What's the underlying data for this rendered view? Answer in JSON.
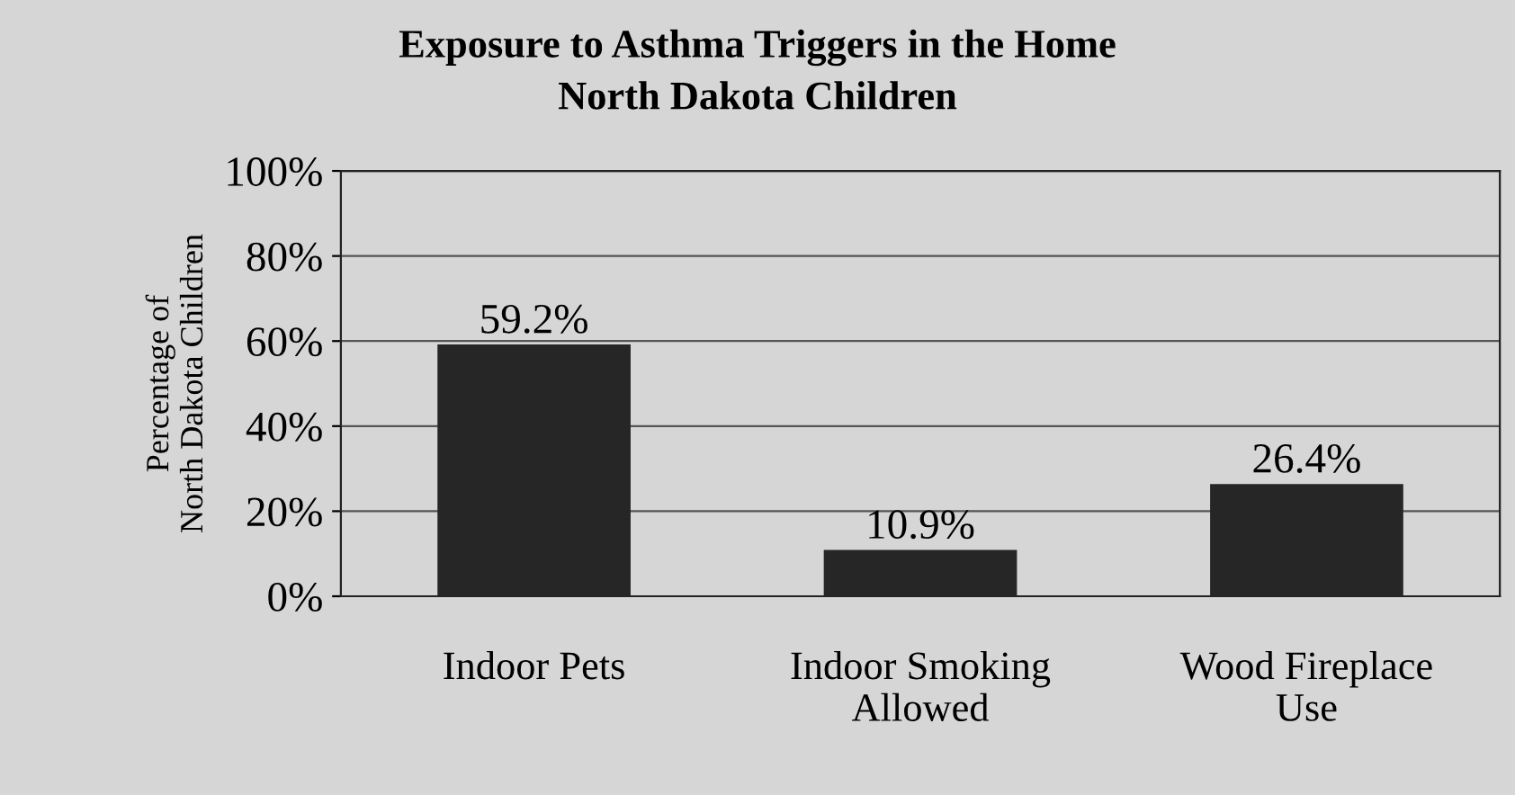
{
  "chart_data": {
    "type": "bar",
    "title": "Exposure to Asthma Triggers in the Home",
    "subtitle": "North Dakota Children",
    "ylabel": "Percentage of\nNorth Dakota Children",
    "categories": [
      "Indoor Pets",
      "Indoor Smoking\nAllowed",
      "Wood Fireplace\nUse"
    ],
    "values": [
      59.2,
      10.9,
      26.4
    ],
    "value_labels": [
      "59.2%",
      "10.9%",
      "26.4%"
    ],
    "color": "#262626",
    "ylim": [
      0,
      100
    ],
    "yticks": [
      {
        "value": 0,
        "label": "0%"
      },
      {
        "value": 20,
        "label": "20%"
      },
      {
        "value": 40,
        "label": "40%"
      },
      {
        "value": 60,
        "label": "60%"
      },
      {
        "value": 80,
        "label": "80%"
      },
      {
        "value": 100,
        "label": "100%"
      }
    ],
    "grid": "y"
  }
}
